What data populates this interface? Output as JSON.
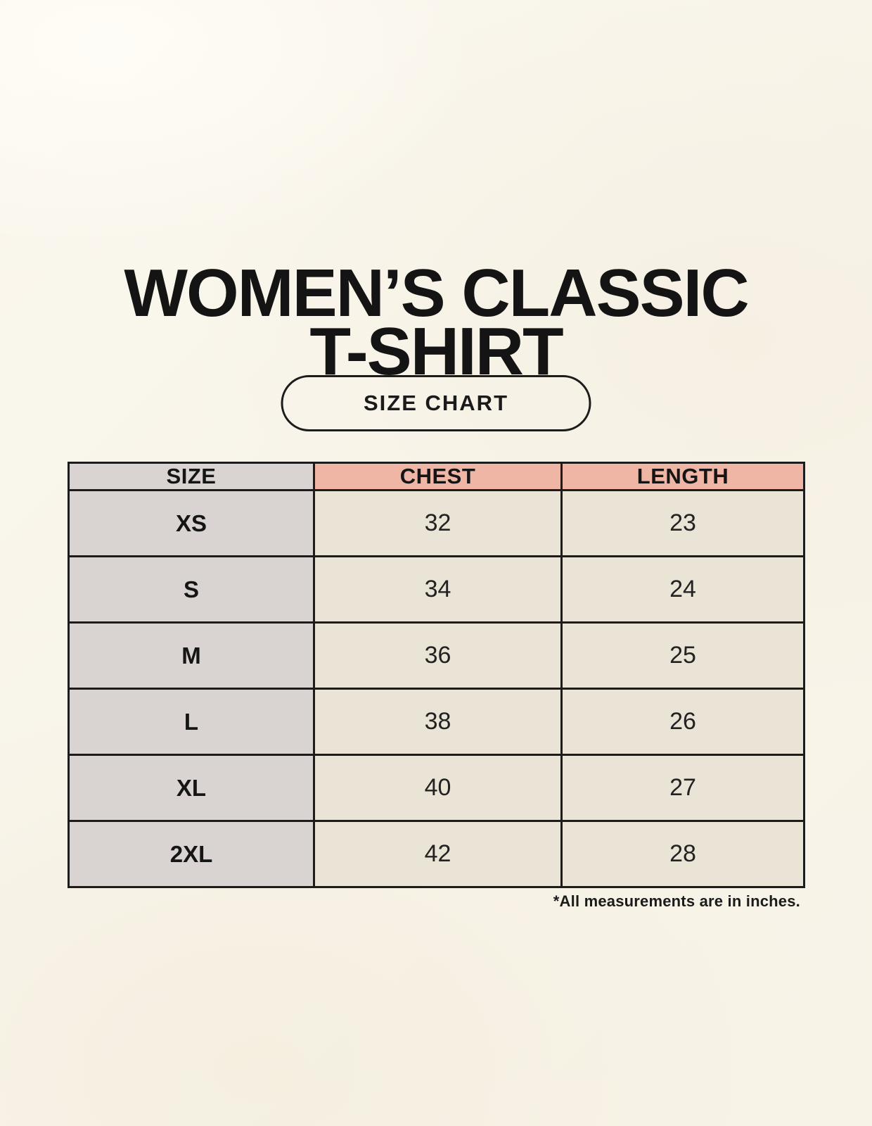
{
  "header": {
    "title_line1": "WOMEN’S CLASSIC",
    "title_line2": "T-SHIRT",
    "size_chart_button_label": "SIZE CHART"
  },
  "chart_data": {
    "type": "table",
    "title": "WOMEN’S CLASSIC T-SHIRT",
    "subtitle": "SIZE CHART",
    "columns": [
      "SIZE",
      "CHEST",
      "LENGTH"
    ],
    "rows": [
      [
        "XS",
        "32",
        "23"
      ],
      [
        "S",
        "34",
        "24"
      ],
      [
        "M",
        "36",
        "25"
      ],
      [
        "L",
        "38",
        "26"
      ],
      [
        "XL",
        "40",
        "27"
      ],
      [
        "2XL",
        "42",
        "28"
      ]
    ],
    "units": "inches",
    "note": "*All measurements are in inches."
  },
  "footnote": "*All measurements are in inches.",
  "colors": {
    "background": "#f8f4e9",
    "size_column_bg": "#d9d3d1",
    "measure_header_bg": "#f0b6a5",
    "data_cell_bg": "#eae4d6",
    "border": "#1c1c1c",
    "text": "#161616"
  }
}
